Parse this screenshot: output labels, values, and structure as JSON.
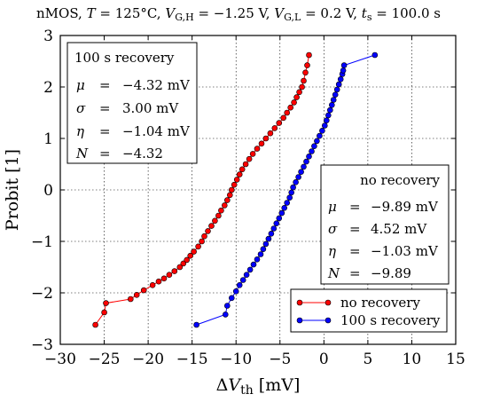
{
  "chart_data": {
    "type": "scatter",
    "title": "nMOS, T = 125°C, V_G,H = −1.25 V, V_G,L = 0.2 V, t_s = 100.0 s",
    "title_parts": {
      "prefix": "nMOS, ",
      "T_sym": "T",
      "T_val": " = 125°C, ",
      "vgh_sym": "V",
      "vgh_sub": "G,H",
      "vgh_val": " = −1.25 V, ",
      "vgl_sym": "V",
      "vgl_sub": "G,L",
      "vgl_val": " = 0.2 V, ",
      "ts_sym": "t",
      "ts_sub": "s",
      "ts_val": " = 100.0 s"
    },
    "xlabel_parts": {
      "delta": "Δ",
      "sym": "V",
      "sub": "th",
      "unit": " [mV]"
    },
    "ylabel": "Probit [1]",
    "xlim": [
      -30,
      15
    ],
    "ylim": [
      -3,
      3
    ],
    "xticks": [
      -30,
      -25,
      -20,
      -15,
      -10,
      -5,
      0,
      5,
      10,
      15
    ],
    "yticks": [
      -3,
      -2,
      -1,
      0,
      1,
      2,
      3
    ],
    "xtick_labels": [
      "−30",
      "−25",
      "−20",
      "−15",
      "−10",
      "−5",
      "0",
      "5",
      "10",
      "15"
    ],
    "ytick_labels": [
      "−3",
      "−2",
      "−1",
      "0",
      "1",
      "2",
      "3"
    ],
    "grid": true,
    "legend_placement": "lower-right",
    "series": [
      {
        "name": "no recovery",
        "color": "#ff0000",
        "points": [
          [
            -26.0,
            -2.62
          ],
          [
            -25.0,
            -2.38
          ],
          [
            -24.8,
            -2.2
          ],
          [
            -22.0,
            -2.12
          ],
          [
            -21.3,
            -2.04
          ],
          [
            -20.5,
            -1.95
          ],
          [
            -19.5,
            -1.85
          ],
          [
            -18.8,
            -1.78
          ],
          [
            -18.2,
            -1.72
          ],
          [
            -17.6,
            -1.65
          ],
          [
            -17.0,
            -1.58
          ],
          [
            -16.4,
            -1.5
          ],
          [
            -16.0,
            -1.43
          ],
          [
            -15.6,
            -1.36
          ],
          [
            -15.2,
            -1.28
          ],
          [
            -14.8,
            -1.2
          ],
          [
            -14.3,
            -1.1
          ],
          [
            -13.9,
            -1.0
          ],
          [
            -13.6,
            -0.9
          ],
          [
            -13.2,
            -0.8
          ],
          [
            -12.8,
            -0.7
          ],
          [
            -12.4,
            -0.6
          ],
          [
            -12.0,
            -0.5
          ],
          [
            -11.7,
            -0.4
          ],
          [
            -11.3,
            -0.3
          ],
          [
            -11.0,
            -0.2
          ],
          [
            -10.7,
            -0.1
          ],
          [
            -10.5,
            0.0
          ],
          [
            -10.2,
            0.1
          ],
          [
            -9.9,
            0.2
          ],
          [
            -9.6,
            0.3
          ],
          [
            -9.3,
            0.4
          ],
          [
            -8.9,
            0.5
          ],
          [
            -8.5,
            0.6
          ],
          [
            -8.1,
            0.7
          ],
          [
            -7.6,
            0.8
          ],
          [
            -7.1,
            0.9
          ],
          [
            -6.6,
            1.0
          ],
          [
            -6.1,
            1.1
          ],
          [
            -5.6,
            1.2
          ],
          [
            -5.1,
            1.3
          ],
          [
            -4.6,
            1.4
          ],
          [
            -4.2,
            1.5
          ],
          [
            -3.8,
            1.6
          ],
          [
            -3.4,
            1.7
          ],
          [
            -3.1,
            1.8
          ],
          [
            -2.8,
            1.9
          ],
          [
            -2.5,
            2.0
          ],
          [
            -2.3,
            2.12
          ],
          [
            -2.1,
            2.28
          ],
          [
            -1.9,
            2.42
          ],
          [
            -1.7,
            2.62
          ]
        ]
      },
      {
        "name": "100 s recovery",
        "color": "#0000ff",
        "points": [
          [
            -14.5,
            -2.62
          ],
          [
            -11.2,
            -2.42
          ],
          [
            -11.0,
            -2.25
          ],
          [
            -10.5,
            -2.1
          ],
          [
            -10.0,
            -1.97
          ],
          [
            -9.6,
            -1.85
          ],
          [
            -9.2,
            -1.75
          ],
          [
            -8.8,
            -1.65
          ],
          [
            -8.4,
            -1.55
          ],
          [
            -8.0,
            -1.45
          ],
          [
            -7.6,
            -1.35
          ],
          [
            -7.2,
            -1.25
          ],
          [
            -6.9,
            -1.15
          ],
          [
            -6.6,
            -1.05
          ],
          [
            -6.3,
            -0.95
          ],
          [
            -6.0,
            -0.85
          ],
          [
            -5.7,
            -0.75
          ],
          [
            -5.4,
            -0.65
          ],
          [
            -5.1,
            -0.55
          ],
          [
            -4.8,
            -0.45
          ],
          [
            -4.5,
            -0.35
          ],
          [
            -4.2,
            -0.25
          ],
          [
            -3.9,
            -0.15
          ],
          [
            -3.7,
            -0.05
          ],
          [
            -3.5,
            0.05
          ],
          [
            -3.2,
            0.15
          ],
          [
            -2.9,
            0.25
          ],
          [
            -2.6,
            0.35
          ],
          [
            -2.3,
            0.45
          ],
          [
            -2.0,
            0.55
          ],
          [
            -1.7,
            0.65
          ],
          [
            -1.4,
            0.75
          ],
          [
            -1.1,
            0.85
          ],
          [
            -0.8,
            0.95
          ],
          [
            -0.5,
            1.05
          ],
          [
            -0.2,
            1.15
          ],
          [
            0.1,
            1.25
          ],
          [
            0.3,
            1.35
          ],
          [
            0.5,
            1.45
          ],
          [
            0.7,
            1.55
          ],
          [
            0.9,
            1.65
          ],
          [
            1.1,
            1.75
          ],
          [
            1.3,
            1.85
          ],
          [
            1.5,
            1.95
          ],
          [
            1.7,
            2.05
          ],
          [
            1.9,
            2.15
          ],
          [
            2.1,
            2.25
          ],
          [
            2.2,
            2.32
          ],
          [
            2.3,
            2.42
          ],
          [
            5.8,
            2.62
          ]
        ]
      }
    ],
    "stats_boxes": [
      {
        "key": "recovery",
        "heading": "100 s recovery",
        "rows": [
          {
            "sym": "μ",
            "eq": "=",
            "val": "−4.32 mV"
          },
          {
            "sym": "σ",
            "eq": "=",
            "val": "3.00 mV"
          },
          {
            "sym": "η",
            "eq": "=",
            "val": "−1.04 mV"
          },
          {
            "sym": "N",
            "eq": "=",
            "val": "−4.32"
          }
        ]
      },
      {
        "key": "norecovery",
        "heading": "no recovery",
        "rows": [
          {
            "sym": "μ",
            "eq": "=",
            "val": "−9.89 mV"
          },
          {
            "sym": "σ",
            "eq": "=",
            "val": "4.52 mV"
          },
          {
            "sym": "η",
            "eq": "=",
            "val": "−1.03 mV"
          },
          {
            "sym": "N",
            "eq": "=",
            "val": "−9.89"
          }
        ]
      }
    ],
    "legend": [
      {
        "label": "no recovery",
        "color": "#ff0000"
      },
      {
        "label": "100 s recovery",
        "color": "#0000ff"
      }
    ]
  }
}
